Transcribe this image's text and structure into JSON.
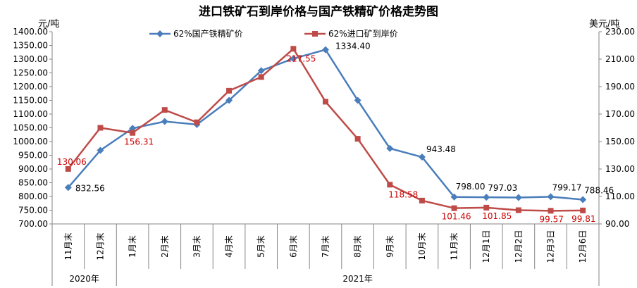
{
  "chart_data": {
    "type": "line",
    "title": "进口铁矿石到岸价格与国产铁精矿价格走势图",
    "ylabel_left": "元/吨",
    "ylabel_right": "美元/吨",
    "categories": [
      "11月末",
      "12月末",
      "1月末",
      "2月末",
      "3月末",
      "4月末",
      "5月末",
      "6月末",
      "7月末",
      "8月末",
      "9月末",
      "10月末",
      "11月末",
      "12月1日",
      "12月2日",
      "12月3日",
      "12月6日"
    ],
    "category_groups": [
      {
        "label": "2020年",
        "count": 2
      },
      {
        "label": "2021年",
        "count": 15
      }
    ],
    "ylim_left": [
      700,
      1400
    ],
    "yticks_left": [
      "700.00",
      "750.00",
      "800.00",
      "850.00",
      "900.00",
      "950.00",
      "1000.00",
      "1050.00",
      "1100.00",
      "1150.00",
      "1200.00",
      "1250.00",
      "1300.00",
      "1350.00",
      "1400.00"
    ],
    "ylim_right": [
      90,
      230
    ],
    "yticks_right": [
      "90.00",
      "110.00",
      "130.00",
      "150.00",
      "170.00",
      "190.00",
      "210.00",
      "230.00"
    ],
    "legend_position": "top",
    "series": [
      {
        "name": "62%国产铁精矿价",
        "axis": "left",
        "color": "#4a7ebb",
        "marker": "diamond",
        "values": [
          832.56,
          968,
          1048,
          1073,
          1062,
          1150,
          1258,
          1302,
          1334.4,
          1150,
          975,
          943.48,
          798.0,
          797.03,
          796,
          799.17,
          788.46
        ],
        "data_labels": [
          "832.56",
          "",
          "",
          "",
          "",
          "",
          "",
          "",
          "1334.40",
          "",
          "",
          "943.48",
          "798.00",
          "797.03",
          "",
          "799.17",
          "788.46"
        ]
      },
      {
        "name": "62%进口矿到岸价",
        "axis": "right",
        "color": "#be4b48",
        "marker": "square",
        "values": [
          130.06,
          160,
          156.31,
          173,
          164,
          187,
          197,
          217.55,
          179,
          152,
          118.58,
          107,
          101.46,
          101.85,
          100,
          99.57,
          99.81
        ],
        "data_labels": [
          "130.06",
          "",
          "156.31",
          "",
          "",
          "",
          "",
          "217.55",
          "",
          "",
          "118.58",
          "",
          "101.46",
          "101.85",
          "",
          "99.57",
          "99.81"
        ]
      }
    ]
  }
}
